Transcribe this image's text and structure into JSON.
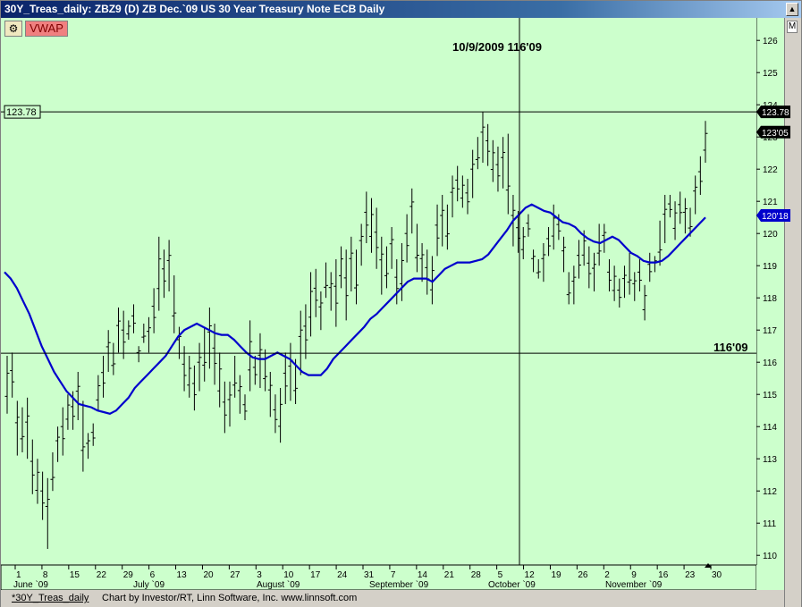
{
  "window": {
    "title": "30Y_Treas_daily: ZBZ9 (D) ZB Dec.`09 US 30 Year Treasury Note ECB Daily"
  },
  "toolbar": {
    "gear_icon": "gear-icon",
    "vwap_label": "VWAP",
    "m_label": "M"
  },
  "status": {
    "link": "*30Y_Treas_daily",
    "credit": "Chart by Investor/RT, Linn Software, Inc. www.linnsoft.com"
  },
  "crosshair": {
    "readout": "10/9/2009  116'09",
    "price_label_right": "116'09",
    "hline_value_left": "123.78",
    "hline_value_right": "123.78",
    "last_price": "123'05",
    "ma_value": "120'18"
  },
  "colors": {
    "plot_bg": "#ccffcc",
    "ma_line": "#0000cc",
    "bars": "#000000",
    "vwap_button": "#f08080"
  },
  "chart_data": {
    "type": "ohlc",
    "title": "",
    "ylim": [
      109.7,
      126.7
    ],
    "y_ticks": [
      110,
      111,
      112,
      113,
      114,
      115,
      116,
      117,
      118,
      119,
      120,
      121,
      122,
      123,
      124,
      125,
      126
    ],
    "x_tick_labels": [
      "1",
      "8",
      "15",
      "22",
      "29",
      "6",
      "13",
      "20",
      "27",
      "3",
      "10",
      "17",
      "24",
      "31",
      "7",
      "14",
      "21",
      "28",
      "5",
      "12",
      "19",
      "26",
      "2",
      "9",
      "16",
      "23",
      "30"
    ],
    "month_labels": [
      "June `09",
      "July `09",
      "August `09",
      "September `09",
      "October `09",
      "November `09"
    ],
    "bars": [
      {
        "h": 116.2,
        "l": 114.4
      },
      {
        "h": 116.3,
        "l": 114.9
      },
      {
        "h": 114.8,
        "l": 113.1
      },
      {
        "h": 114.6,
        "l": 113.2
      },
      {
        "h": 114.9,
        "l": 113.0
      },
      {
        "h": 113.6,
        "l": 111.9
      },
      {
        "h": 113.0,
        "l": 111.6
      },
      {
        "h": 112.6,
        "l": 111.1
      },
      {
        "h": 112.4,
        "l": 110.2
      },
      {
        "h": 113.2,
        "l": 112.0
      },
      {
        "h": 114.0,
        "l": 112.9
      },
      {
        "h": 114.6,
        "l": 113.1
      },
      {
        "h": 115.0,
        "l": 113.9
      },
      {
        "h": 115.1,
        "l": 113.9
      },
      {
        "h": 115.7,
        "l": 114.2
      },
      {
        "h": 114.8,
        "l": 112.6
      },
      {
        "h": 113.8,
        "l": 113.0
      },
      {
        "h": 114.1,
        "l": 113.4
      },
      {
        "h": 115.6,
        "l": 114.5
      },
      {
        "h": 116.2,
        "l": 114.9
      },
      {
        "h": 117.0,
        "l": 115.7
      },
      {
        "h": 116.6,
        "l": 115.6
      },
      {
        "h": 117.7,
        "l": 116.3
      },
      {
        "h": 117.6,
        "l": 116.1
      },
      {
        "h": 117.3,
        "l": 116.7
      },
      {
        "h": 117.8,
        "l": 116.9
      },
      {
        "h": 116.5,
        "l": 116.0
      },
      {
        "h": 117.2,
        "l": 116.6
      },
      {
        "h": 117.4,
        "l": 116.3
      },
      {
        "h": 118.3,
        "l": 116.9
      },
      {
        "h": 119.9,
        "l": 117.6
      },
      {
        "h": 119.5,
        "l": 118.0
      },
      {
        "h": 119.8,
        "l": 118.2
      },
      {
        "h": 118.7,
        "l": 116.9
      },
      {
        "h": 117.1,
        "l": 116.1
      },
      {
        "h": 116.5,
        "l": 115.1
      },
      {
        "h": 116.2,
        "l": 114.9
      },
      {
        "h": 115.9,
        "l": 114.5
      },
      {
        "h": 116.6,
        "l": 115.1
      },
      {
        "h": 117.1,
        "l": 115.4
      },
      {
        "h": 117.7,
        "l": 115.8
      },
      {
        "h": 117.2,
        "l": 115.3
      },
      {
        "h": 116.3,
        "l": 114.6
      },
      {
        "h": 115.4,
        "l": 113.8
      },
      {
        "h": 115.4,
        "l": 114.0
      },
      {
        "h": 116.2,
        "l": 114.9
      },
      {
        "h": 115.6,
        "l": 114.4
      },
      {
        "h": 115.0,
        "l": 114.2
      },
      {
        "h": 117.3,
        "l": 115.1
      },
      {
        "h": 116.2,
        "l": 115.3
      },
      {
        "h": 116.9,
        "l": 115.2
      },
      {
        "h": 116.4,
        "l": 115.1
      },
      {
        "h": 115.7,
        "l": 114.3
      },
      {
        "h": 115.0,
        "l": 113.8
      },
      {
        "h": 115.2,
        "l": 113.5
      },
      {
        "h": 116.3,
        "l": 114.7
      },
      {
        "h": 116.6,
        "l": 114.8
      },
      {
        "h": 116.1,
        "l": 114.7
      },
      {
        "h": 117.6,
        "l": 115.6
      },
      {
        "h": 117.8,
        "l": 116.1
      },
      {
        "h": 118.8,
        "l": 116.8
      },
      {
        "h": 118.9,
        "l": 117.4
      },
      {
        "h": 118.2,
        "l": 117.0
      },
      {
        "h": 119.1,
        "l": 118.0
      },
      {
        "h": 118.8,
        "l": 117.6
      },
      {
        "h": 119.2,
        "l": 117.1
      },
      {
        "h": 119.6,
        "l": 118.3
      },
      {
        "h": 119.5,
        "l": 117.3
      },
      {
        "h": 119.9,
        "l": 118.2
      },
      {
        "h": 119.5,
        "l": 117.8
      },
      {
        "h": 120.3,
        "l": 119.0
      },
      {
        "h": 121.3,
        "l": 119.7
      },
      {
        "h": 121.1,
        "l": 119.4
      },
      {
        "h": 120.8,
        "l": 118.9
      },
      {
        "h": 119.9,
        "l": 118.1
      },
      {
        "h": 119.6,
        "l": 118.3
      },
      {
        "h": 120.2,
        "l": 118.9
      },
      {
        "h": 119.2,
        "l": 117.8
      },
      {
        "h": 119.7,
        "l": 117.9
      },
      {
        "h": 120.6,
        "l": 119.1
      },
      {
        "h": 121.4,
        "l": 120.0
      },
      {
        "h": 120.3,
        "l": 118.8
      },
      {
        "h": 119.7,
        "l": 118.5
      },
      {
        "h": 119.5,
        "l": 118.1
      },
      {
        "h": 119.3,
        "l": 117.8
      },
      {
        "h": 120.9,
        "l": 119.3
      },
      {
        "h": 121.2,
        "l": 119.6
      },
      {
        "h": 120.9,
        "l": 119.5
      },
      {
        "h": 121.8,
        "l": 120.5
      },
      {
        "h": 122.1,
        "l": 121.0
      },
      {
        "h": 121.8,
        "l": 120.8
      },
      {
        "h": 121.7,
        "l": 120.6
      },
      {
        "h": 122.6,
        "l": 121.1
      },
      {
        "h": 123.0,
        "l": 122.0
      },
      {
        "h": 123.78,
        "l": 122.2
      },
      {
        "h": 123.4,
        "l": 122.1
      },
      {
        "h": 122.9,
        "l": 121.6
      },
      {
        "h": 122.7,
        "l": 121.3
      },
      {
        "h": 123.0,
        "l": 121.4
      },
      {
        "h": 123.1,
        "l": 120.6
      },
      {
        "h": 121.2,
        "l": 119.6
      },
      {
        "h": 120.7,
        "l": 119.4
      },
      {
        "h": 120.2,
        "l": 119.2
      },
      {
        "h": 120.6,
        "l": 119.9
      },
      {
        "h": 119.5,
        "l": 118.8
      },
      {
        "h": 119.2,
        "l": 118.6
      },
      {
        "h": 119.7,
        "l": 118.5
      },
      {
        "h": 120.2,
        "l": 119.3
      },
      {
        "h": 120.9,
        "l": 119.5
      },
      {
        "h": 120.6,
        "l": 119.8
      },
      {
        "h": 119.9,
        "l": 118.8
      },
      {
        "h": 118.8,
        "l": 117.8
      },
      {
        "h": 119.0,
        "l": 117.8
      },
      {
        "h": 119.8,
        "l": 118.6
      },
      {
        "h": 120.1,
        "l": 119.0
      },
      {
        "h": 119.6,
        "l": 118.3
      },
      {
        "h": 119.4,
        "l": 118.2
      },
      {
        "h": 120.3,
        "l": 119.0
      },
      {
        "h": 120.3,
        "l": 119.4
      },
      {
        "h": 119.2,
        "l": 118.2
      },
      {
        "h": 119.0,
        "l": 117.9
      },
      {
        "h": 118.6,
        "l": 117.7
      },
      {
        "h": 119.0,
        "l": 118.0
      },
      {
        "h": 119.4,
        "l": 118.1
      },
      {
        "h": 118.8,
        "l": 117.9
      },
      {
        "h": 119.2,
        "l": 118.2
      },
      {
        "h": 118.4,
        "l": 117.3
      },
      {
        "h": 119.4,
        "l": 118.5
      },
      {
        "h": 119.3,
        "l": 118.8
      },
      {
        "h": 120.4,
        "l": 119.0
      },
      {
        "h": 121.2,
        "l": 119.7
      },
      {
        "h": 121.2,
        "l": 120.5
      },
      {
        "h": 121.0,
        "l": 119.8
      },
      {
        "h": 121.3,
        "l": 120.3
      },
      {
        "h": 121.1,
        "l": 120.0
      },
      {
        "h": 120.8,
        "l": 119.9
      },
      {
        "h": 121.8,
        "l": 120.6
      },
      {
        "h": 122.4,
        "l": 121.2
      },
      {
        "h": 123.5,
        "l": 122.2
      }
    ],
    "ma_series": {
      "name": "",
      "values": [
        118.8,
        118.6,
        118.3,
        117.9,
        117.5,
        117.0,
        116.5,
        116.1,
        115.7,
        115.4,
        115.1,
        114.9,
        114.7,
        114.65,
        114.6,
        114.5,
        114.45,
        114.4,
        114.5,
        114.7,
        114.9,
        115.2,
        115.4,
        115.6,
        115.8,
        116.0,
        116.2,
        116.5,
        116.8,
        117.0,
        117.1,
        117.2,
        117.1,
        117.0,
        116.9,
        116.85,
        116.85,
        116.7,
        116.5,
        116.3,
        116.15,
        116.1,
        116.1,
        116.2,
        116.3,
        116.2,
        116.1,
        115.9,
        115.7,
        115.6,
        115.6,
        115.6,
        115.8,
        116.1,
        116.3,
        116.5,
        116.7,
        116.9,
        117.1,
        117.35,
        117.5,
        117.7,
        117.9,
        118.1,
        118.3,
        118.5,
        118.6,
        118.6,
        118.6,
        118.5,
        118.7,
        118.9,
        119.0,
        119.1,
        119.1,
        119.1,
        119.15,
        119.2,
        119.35,
        119.6,
        119.85,
        120.1,
        120.4,
        120.6,
        120.8,
        120.9,
        120.8,
        120.7,
        120.65,
        120.5,
        120.35,
        120.3,
        120.2,
        120.0,
        119.85,
        119.75,
        119.7,
        119.8,
        119.9,
        119.8,
        119.6,
        119.4,
        119.3,
        119.15,
        119.1,
        119.1,
        119.15,
        119.3,
        119.5,
        119.7,
        119.9,
        120.1,
        120.3,
        120.5
      ]
    }
  }
}
